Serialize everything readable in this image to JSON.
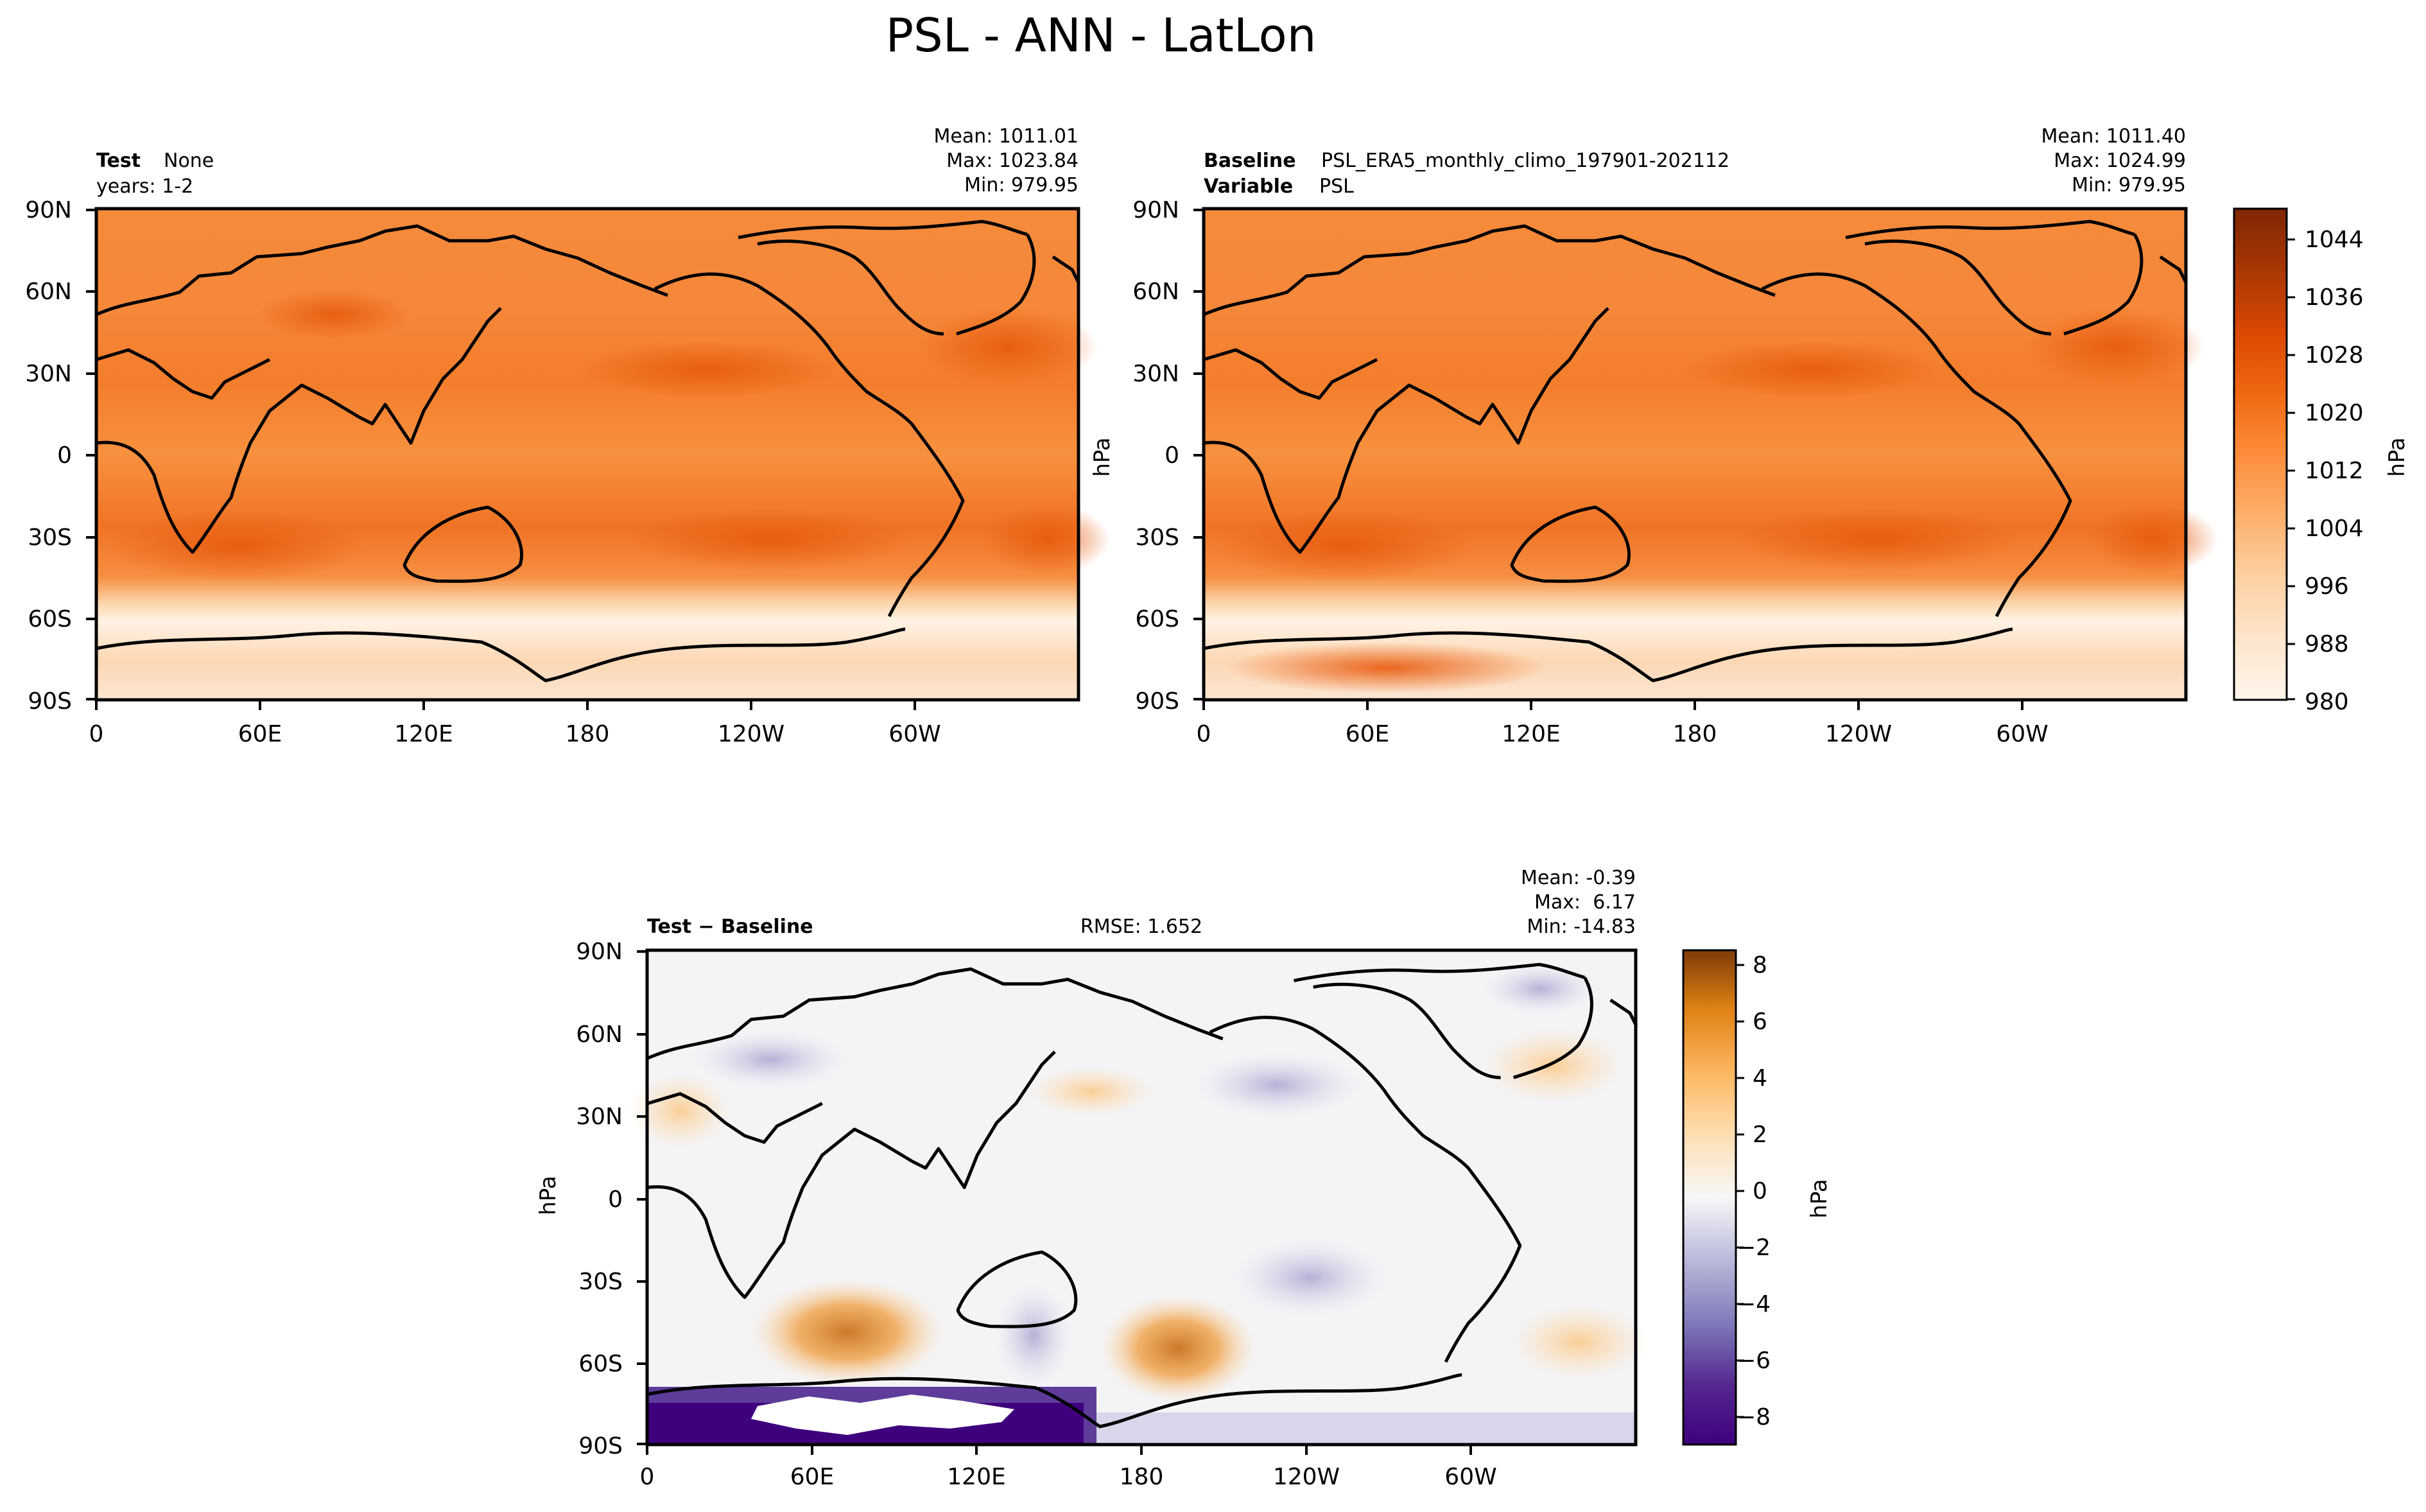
{
  "figure": {
    "title": "PSL - ANN - LatLon"
  },
  "chart_data": [
    {
      "type": "heatmap",
      "id": "test",
      "title_bold": "Test",
      "title_text": "None",
      "subtitle": "years: 1-2",
      "stats": [
        "Mean: 1011.01",
        "Max: 1023.84",
        "Min: 979.95"
      ],
      "x_ticks": [
        "0",
        "60E",
        "120E",
        "180",
        "120W",
        "60W"
      ],
      "y_ticks": [
        "90N",
        "60N",
        "30N",
        "0",
        "30S",
        "60S",
        "90S"
      ],
      "ylabel": "",
      "xlim": [
        0,
        360
      ],
      "ylim": [
        -90,
        90
      ]
    },
    {
      "type": "heatmap",
      "id": "baseline",
      "title_bold": "Baseline",
      "title_text": "PSL_ERA5_monthly_climo_197901-202112",
      "subtitle_bold": "Variable",
      "subtitle_text": "PSL",
      "stats": [
        "Mean: 1011.40",
        "Max: 1024.99",
        "Min: 979.95"
      ],
      "x_ticks": [
        "0",
        "60E",
        "120E",
        "180",
        "120W",
        "60W"
      ],
      "y_ticks": [
        "90N",
        "60N",
        "30N",
        "0",
        "30S",
        "60S",
        "90S"
      ],
      "ylabel": "hPa",
      "xlim": [
        0,
        360
      ],
      "ylim": [
        -90,
        90
      ],
      "colorbar": {
        "label": "hPa",
        "ticks": [
          "1044",
          "1036",
          "1028",
          "1020",
          "1012",
          "1004",
          "996",
          "988",
          "980"
        ],
        "range": [
          980,
          1048
        ],
        "colors": [
          "#fff5eb",
          "#fee6ce",
          "#fdd0a2",
          "#fdae6b",
          "#fd8d3c",
          "#f16913",
          "#d94801",
          "#a63603",
          "#7f2704"
        ]
      }
    },
    {
      "type": "heatmap",
      "id": "diff",
      "title_bold": "Test − Baseline",
      "rmse": "RMSE: 1.652",
      "stats": [
        "Mean: -0.39",
        "Max:  6.17",
        "Min: -14.83"
      ],
      "x_ticks": [
        "0",
        "60E",
        "120E",
        "180",
        "120W",
        "60W"
      ],
      "y_ticks": [
        "90N",
        "60N",
        "30N",
        "0",
        "30S",
        "60S",
        "90S"
      ],
      "ylabel": "hPa",
      "xlim": [
        0,
        360
      ],
      "ylim": [
        -90,
        90
      ],
      "colorbar": {
        "label": "hPa",
        "ticks": [
          "8",
          "6",
          "4",
          "2",
          "0",
          "−2",
          "−4",
          "−6",
          "−8"
        ],
        "range": [
          -9,
          8.5
        ],
        "colors": [
          "#3f007d",
          "#54278f",
          "#807dba",
          "#bcbddc",
          "#f7f7f7",
          "#fee0b6",
          "#fdb863",
          "#e08214",
          "#7f3b08"
        ]
      }
    }
  ]
}
